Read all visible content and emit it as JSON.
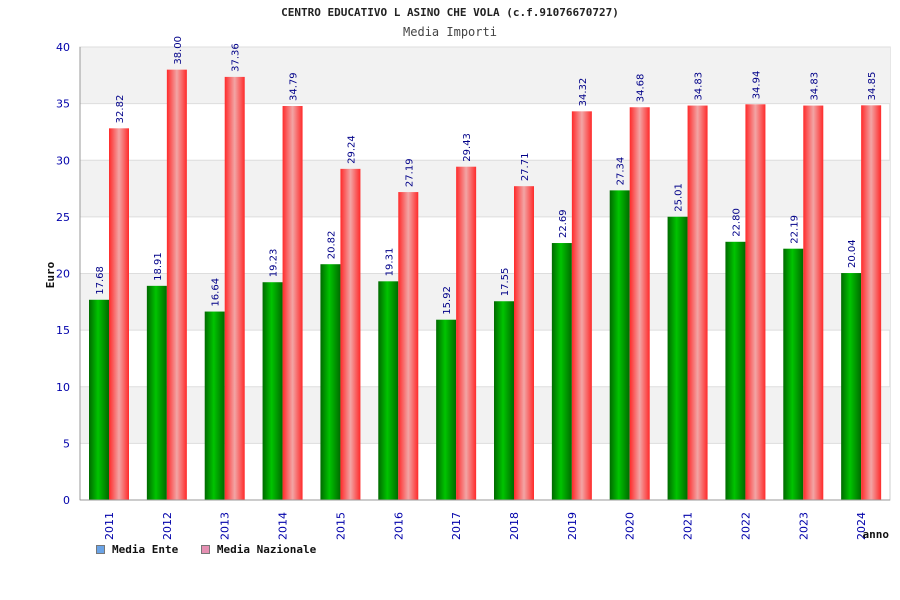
{
  "title": "CENTRO EDUCATIVO L ASINO CHE VOLA (c.f.91076670727)",
  "subtitle": "Media Importi",
  "legend": [
    {
      "label": "Media Ente",
      "color": "#6aa3e6"
    },
    {
      "label": "Media Nazionale",
      "color": "#e58fb2"
    }
  ],
  "colors": {
    "green": "#00c400",
    "green_dark": "#006a00",
    "red": "#ff2a2a",
    "red_light": "#f2a5a5",
    "axis_text": "#0000aa",
    "label_text": "#000088",
    "band": "#f2f2f2"
  },
  "chart_data": {
    "type": "bar",
    "title": "Media Importi",
    "xlabel": "anno",
    "ylabel": "Euro",
    "ylim": [
      0,
      40
    ],
    "yticks": [
      0,
      5,
      10,
      15,
      20,
      25,
      30,
      35,
      40
    ],
    "categories": [
      "2011",
      "2012",
      "2013",
      "2014",
      "2015",
      "2016",
      "2017",
      "2018",
      "2019",
      "2020",
      "2021",
      "2022",
      "2023",
      "2024"
    ],
    "series": [
      {
        "name": "Media Ente",
        "values": [
          17.68,
          18.91,
          16.64,
          19.23,
          20.82,
          19.31,
          15.92,
          17.55,
          22.69,
          27.34,
          25.01,
          22.8,
          22.19,
          20.04
        ],
        "labels": [
          "17.68",
          "18.91",
          "16.64",
          "19.23",
          "20.82",
          "19.31",
          "15.92",
          "17.55",
          "22.69",
          "27.34",
          "25.01",
          "22.80",
          "22.19",
          "20.04"
        ]
      },
      {
        "name": "Media Nazionale",
        "values": [
          32.82,
          38.0,
          37.36,
          34.79,
          29.24,
          27.19,
          29.43,
          27.71,
          34.32,
          34.68,
          34.83,
          34.94,
          34.83,
          34.85
        ],
        "labels": [
          "32.82",
          "38.00",
          "37.36",
          "34.79",
          "29.24",
          "27.19",
          "29.43",
          "27.71",
          "34.32",
          "34.68",
          "34.83",
          "34.94",
          "34.83",
          "34.85"
        ]
      }
    ]
  }
}
